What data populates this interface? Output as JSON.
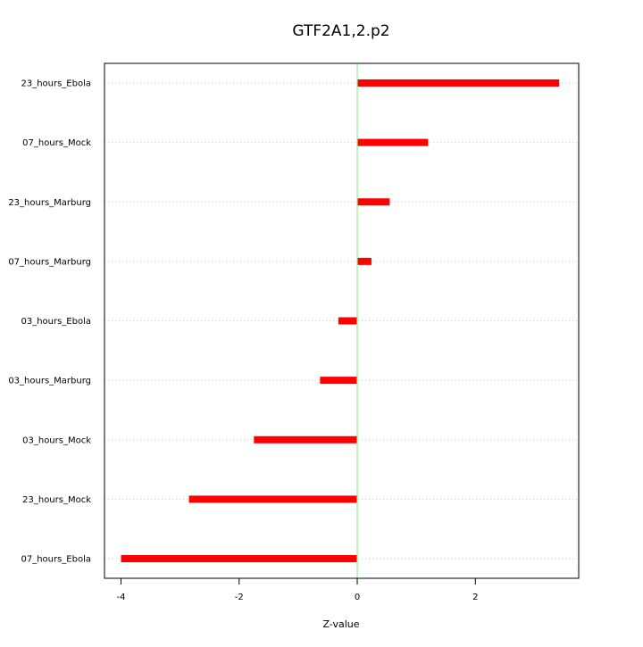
{
  "chart_data": {
    "type": "bar",
    "orientation": "horizontal",
    "title": "GTF2A1,2.p2",
    "xlabel": "Z-value",
    "ylabel": "",
    "categories": [
      "23_hours_Ebola",
      "07_hours_Mock",
      "23_hours_Marburg",
      "07_hours_Marburg",
      "03_hours_Ebola",
      "03_hours_Marburg",
      "03_hours_Mock",
      "23_hours_Mock",
      "07_hours_Ebola"
    ],
    "values": [
      3.42,
      1.2,
      0.55,
      0.24,
      -0.32,
      -0.63,
      -1.75,
      -2.85,
      -4.0
    ],
    "xlim": [
      -4.28,
      3.75
    ],
    "xticks": [
      -4,
      -2,
      0,
      2
    ],
    "xtick_labels": [
      "-4",
      "-2",
      "0",
      "2"
    ],
    "reference_line": {
      "x": 0,
      "color": "#90ee90"
    },
    "bar_color": "#ff0000",
    "grid": "horizontal dotted",
    "legend": "none"
  }
}
